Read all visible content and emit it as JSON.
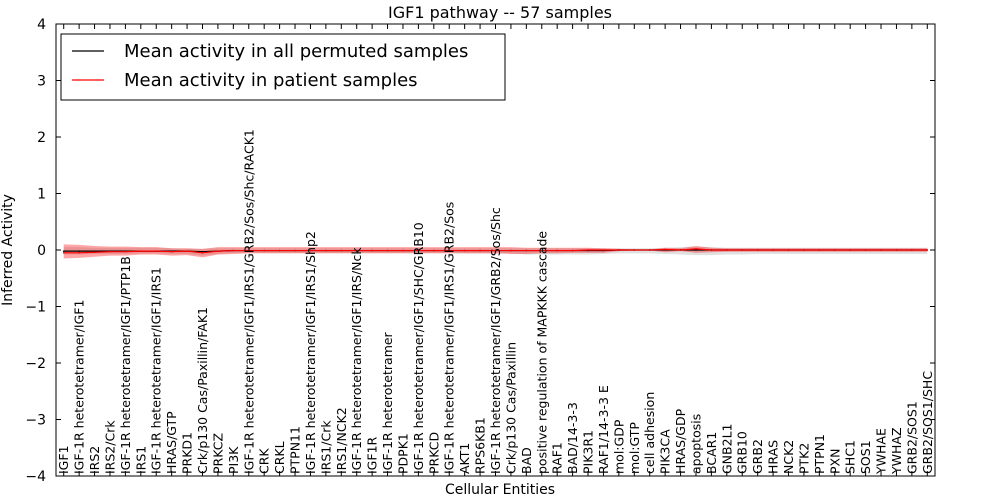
{
  "chart_data": {
    "type": "line",
    "title": "IGF1 pathway -- 57 samples",
    "xlabel": "Cellular Entities",
    "ylabel": "Inferred Activity",
    "ylim": [
      -4,
      4
    ],
    "yticks": [
      -4,
      -3,
      -2,
      -1,
      0,
      1,
      2,
      3,
      4
    ],
    "ytick_labels": [
      "−4",
      "−3",
      "−2",
      "−1",
      "0",
      "1",
      "2",
      "3",
      "4"
    ],
    "legend_position": "top-left",
    "categories": [
      "IGF1",
      "IGF-1R heterotetramer/IGF1",
      "IRS2",
      "IRS2/Crk",
      "IGF-1R heterotetramer/IGF1/PTP1B",
      "IRS1",
      "IGF-1R heterotetramer/IGF1/IRS1",
      "HRAS/GTP",
      "PRKD1",
      "Crk/p130 Cas/Paxillin/FAK1",
      "PRKCZ",
      "PI3K",
      "IGF-1R heterotetramer/IGF1/IRS1/GRB2/Sos/Shc/RACK1",
      "CRK",
      "CRKL",
      "PTPN11",
      "IGF-1R heterotetramer/IGF1/IRS1/Shp2",
      "IRS1/Crk",
      "IRS1/NCK2",
      "IGF-1R heterotetramer/IGF1/IRS/Nck",
      "IGF1R",
      "IGF-1R heterotetramer",
      "PDPK1",
      "IGF-1R heterotetramer/IGF1/SHC/GRB10",
      "PRKCD",
      "IGF-1R heterotetramer/IGF1/IRS1/GRB2/Sos",
      "AKT1",
      "RPS6KB1",
      "IGF-1R heterotetramer/IGF1/GRB2/Sos/Shc",
      "Crk/p130 Cas/Paxillin",
      "BAD",
      "positive regulation of MAPKKK cascade",
      "RAF1",
      "BAD/14-3-3",
      "PIK3R1",
      "RAF1/14-3-3 E",
      "mol:GDP",
      "mol:GTP",
      "cell adhesion",
      "PIK3CA",
      "HRAS/GDP",
      "apoptosis",
      "BCAR1",
      "GNB2L1",
      "GRB10",
      "GRB2",
      "HRAS",
      "NCK2",
      "PTK2",
      "PTPN1",
      "PXN",
      "SHC1",
      "SOS1",
      "YWHAE",
      "YWHAZ",
      "GRB2/SOS1",
      "GRB2/SOS1/SHC"
    ],
    "series": [
      {
        "name": "Mean activity in all permuted samples",
        "color": "#000000",
        "values": [
          -0.02,
          -0.02,
          -0.02,
          -0.02,
          -0.02,
          -0.02,
          -0.02,
          -0.02,
          -0.02,
          -0.03,
          -0.02,
          -0.01,
          -0.01,
          -0.01,
          -0.01,
          -0.01,
          -0.01,
          -0.01,
          -0.01,
          -0.01,
          -0.01,
          -0.01,
          -0.01,
          -0.01,
          -0.01,
          -0.01,
          -0.01,
          -0.01,
          -0.01,
          -0.01,
          -0.01,
          -0.01,
          -0.01,
          -0.01,
          -0.01,
          -0.01,
          0.0,
          0.0,
          0.0,
          0.0,
          0.0,
          0.0,
          0.0,
          0.0,
          0.0,
          0.0,
          0.0,
          0.0,
          0.0,
          0.0,
          0.0,
          0.0,
          0.0,
          0.0,
          0.0,
          0.0,
          0.0
        ],
        "lower": [
          -0.08,
          -0.08,
          -0.07,
          -0.07,
          -0.07,
          -0.06,
          -0.06,
          -0.07,
          -0.07,
          -0.1,
          -0.07,
          -0.05,
          -0.05,
          -0.05,
          -0.05,
          -0.05,
          -0.05,
          -0.05,
          -0.05,
          -0.05,
          -0.05,
          -0.05,
          -0.05,
          -0.05,
          -0.05,
          -0.05,
          -0.06,
          -0.06,
          -0.06,
          -0.06,
          -0.08,
          -0.08,
          -0.08,
          -0.08,
          -0.08,
          -0.07,
          -0.06,
          -0.06,
          -0.06,
          -0.07,
          -0.08,
          -0.09,
          -0.09,
          -0.08,
          -0.08,
          -0.07,
          -0.07,
          -0.07,
          -0.07,
          -0.07,
          -0.07,
          -0.07,
          -0.07,
          -0.07,
          -0.07,
          -0.07,
          -0.07
        ],
        "upper": [
          0.05,
          0.05,
          0.04,
          0.04,
          0.04,
          0.04,
          0.04,
          0.03,
          0.02,
          0.02,
          0.03,
          0.03,
          0.03,
          0.03,
          0.03,
          0.03,
          0.03,
          0.03,
          0.03,
          0.03,
          0.03,
          0.03,
          0.03,
          0.03,
          0.03,
          0.03,
          0.03,
          0.03,
          0.03,
          0.03,
          0.03,
          0.03,
          0.03,
          0.03,
          0.03,
          0.03,
          0.03,
          0.03,
          0.03,
          0.04,
          0.05,
          0.06,
          0.05,
          0.04,
          0.04,
          0.04,
          0.04,
          0.04,
          0.04,
          0.04,
          0.04,
          0.04,
          0.04,
          0.04,
          0.04,
          0.04,
          0.04
        ]
      },
      {
        "name": "Mean activity in patient samples",
        "color": "#ff0000",
        "values": [
          -0.05,
          -0.05,
          -0.04,
          -0.03,
          -0.03,
          -0.02,
          -0.02,
          -0.03,
          -0.02,
          -0.05,
          -0.02,
          -0.01,
          -0.01,
          -0.01,
          -0.01,
          -0.01,
          -0.01,
          -0.01,
          -0.01,
          -0.01,
          -0.01,
          -0.01,
          -0.01,
          -0.01,
          -0.01,
          -0.01,
          -0.01,
          -0.01,
          -0.01,
          -0.01,
          -0.01,
          -0.01,
          -0.01,
          -0.01,
          0.0,
          0.0,
          0.0,
          0.0,
          0.0,
          0.01,
          0.0,
          0.02,
          0.0,
          0.0,
          0.0,
          0.0,
          0.0,
          0.0,
          0.0,
          0.0,
          0.0,
          0.0,
          0.0,
          0.0,
          0.0,
          0.0,
          0.0
        ],
        "lower": [
          -0.15,
          -0.14,
          -0.12,
          -0.1,
          -0.1,
          -0.08,
          -0.08,
          -0.1,
          -0.09,
          -0.13,
          -0.08,
          -0.07,
          -0.06,
          -0.06,
          -0.06,
          -0.06,
          -0.06,
          -0.06,
          -0.06,
          -0.06,
          -0.06,
          -0.06,
          -0.06,
          -0.06,
          -0.06,
          -0.06,
          -0.06,
          -0.06,
          -0.06,
          -0.07,
          -0.07,
          -0.06,
          -0.06,
          -0.05,
          -0.05,
          -0.05,
          -0.02,
          -0.01,
          -0.01,
          -0.04,
          -0.02,
          -0.05,
          -0.04,
          -0.03,
          -0.03,
          -0.03,
          -0.03,
          -0.03,
          -0.03,
          -0.03,
          -0.03,
          -0.03,
          -0.03,
          -0.03,
          -0.03,
          -0.03,
          -0.03
        ],
        "upper": [
          0.1,
          0.09,
          0.07,
          0.06,
          0.06,
          0.05,
          0.05,
          0.03,
          0.03,
          0.02,
          0.05,
          0.05,
          0.05,
          0.05,
          0.05,
          0.05,
          0.05,
          0.05,
          0.05,
          0.05,
          0.05,
          0.05,
          0.05,
          0.05,
          0.05,
          0.05,
          0.05,
          0.05,
          0.05,
          0.05,
          0.04,
          0.04,
          0.04,
          0.04,
          0.04,
          0.03,
          0.02,
          0.01,
          0.01,
          0.04,
          0.03,
          0.07,
          0.04,
          0.03,
          0.03,
          0.03,
          0.03,
          0.03,
          0.03,
          0.03,
          0.03,
          0.03,
          0.03,
          0.03,
          0.03,
          0.03,
          0.03
        ]
      }
    ]
  }
}
